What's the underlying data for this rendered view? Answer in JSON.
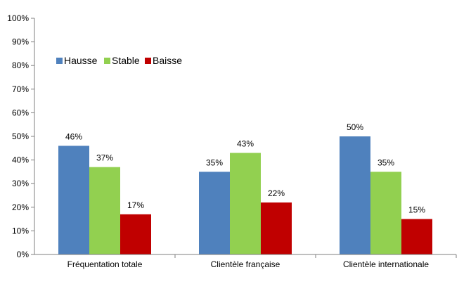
{
  "chart_data": {
    "type": "bar",
    "categories": [
      "Fréquentation totale",
      "Clientèle française",
      "Clientèle internationale"
    ],
    "series": [
      {
        "name": "Hausse",
        "values": [
          46,
          35,
          50
        ],
        "labels": [
          "46%",
          "35%",
          "50%"
        ],
        "color": "#4f81bd"
      },
      {
        "name": "Stable",
        "values": [
          37,
          43,
          35
        ],
        "labels": [
          "37%",
          "43%",
          "35%"
        ],
        "color": "#92d050"
      },
      {
        "name": "Baisse",
        "values": [
          17,
          22,
          15
        ],
        "labels": [
          "17%",
          "22%",
          "15%"
        ],
        "color": "#c00000"
      }
    ],
    "ylim": [
      0,
      100
    ],
    "yticks": [
      "0%",
      "10%",
      "20%",
      "30%",
      "40%",
      "50%",
      "60%",
      "70%",
      "80%",
      "90%",
      "100%"
    ],
    "title": "",
    "xlabel": "",
    "ylabel": "",
    "grid": false,
    "legend_position": "top-left"
  }
}
